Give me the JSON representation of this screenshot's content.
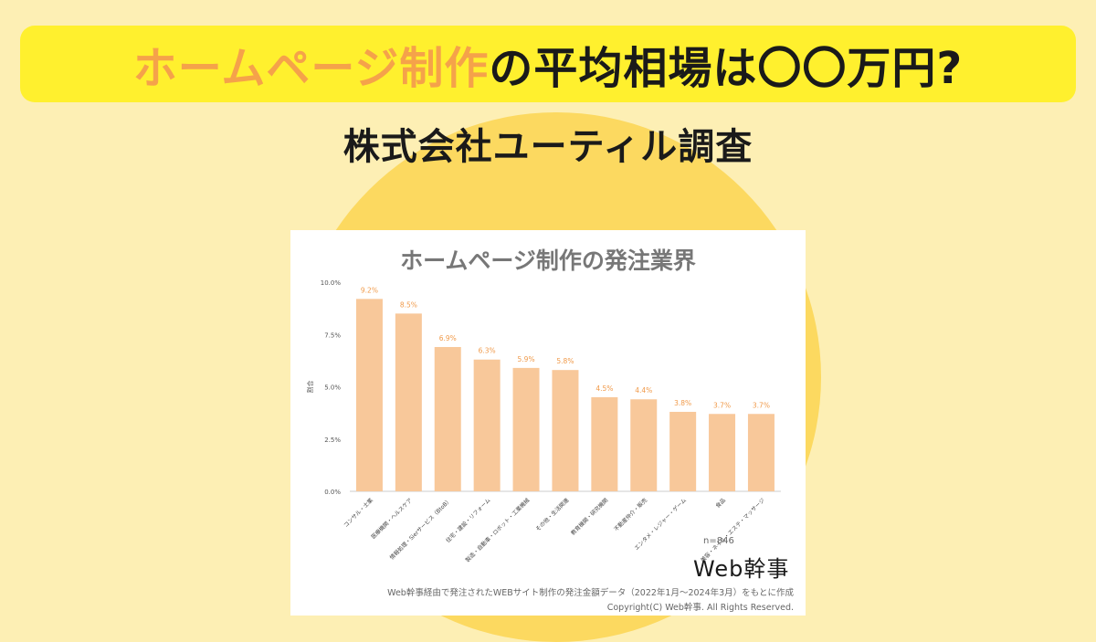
{
  "headline": {
    "part_orange": "ホームページ制作",
    "part_black": "の平均相場は〇〇万円?"
  },
  "subtitle": "株式会社ユーティル調査",
  "colors": {
    "background": "#fdefb4",
    "circle": "#fcd960",
    "headline_box": "#fff02e",
    "headline_orange": "#f5a24a",
    "bar": "#f8c89a",
    "value_label": "#f09a4a"
  },
  "chart_data": {
    "type": "bar",
    "title": "ホームページ制作の発注業界",
    "ylabel": "割合",
    "xlabel": "",
    "ylim": [
      0,
      10
    ],
    "yticks": [
      "0.0%",
      "2.5%",
      "5.0%",
      "7.5%",
      "10.0%"
    ],
    "categories": [
      "コンサル・士業",
      "医療機関・ヘルスケア",
      "情報処理・Sierサービス（BtoB）",
      "住宅・建設・リフォーム",
      "製造・自動車・ロボット・工業機械",
      "その他・生活関連",
      "教育機関・研究機関",
      "不動産仲介・販売",
      "エンタメ・レジャー・ゲーム",
      "食品",
      "美容・ネイル・エステ・マッサージ"
    ],
    "values": [
      9.2,
      8.5,
      6.9,
      6.3,
      5.9,
      5.8,
      4.5,
      4.4,
      3.8,
      3.7,
      3.7
    ],
    "value_labels": [
      "9.2%",
      "8.5%",
      "6.9%",
      "6.3%",
      "5.9%",
      "5.8%",
      "4.5%",
      "4.4%",
      "3.8%",
      "3.7%",
      "3.7%"
    ],
    "grid": false,
    "legend": "none"
  },
  "sample_size": "n=846",
  "brand": "Web幹事",
  "source_note": "Web幹事経由で発注されたWEBサイト制作の発注金額データ（2022年1月～2024年3月）をもとに作成",
  "copyright": "Copyright(C) Web幹事. All Rights Reserved."
}
